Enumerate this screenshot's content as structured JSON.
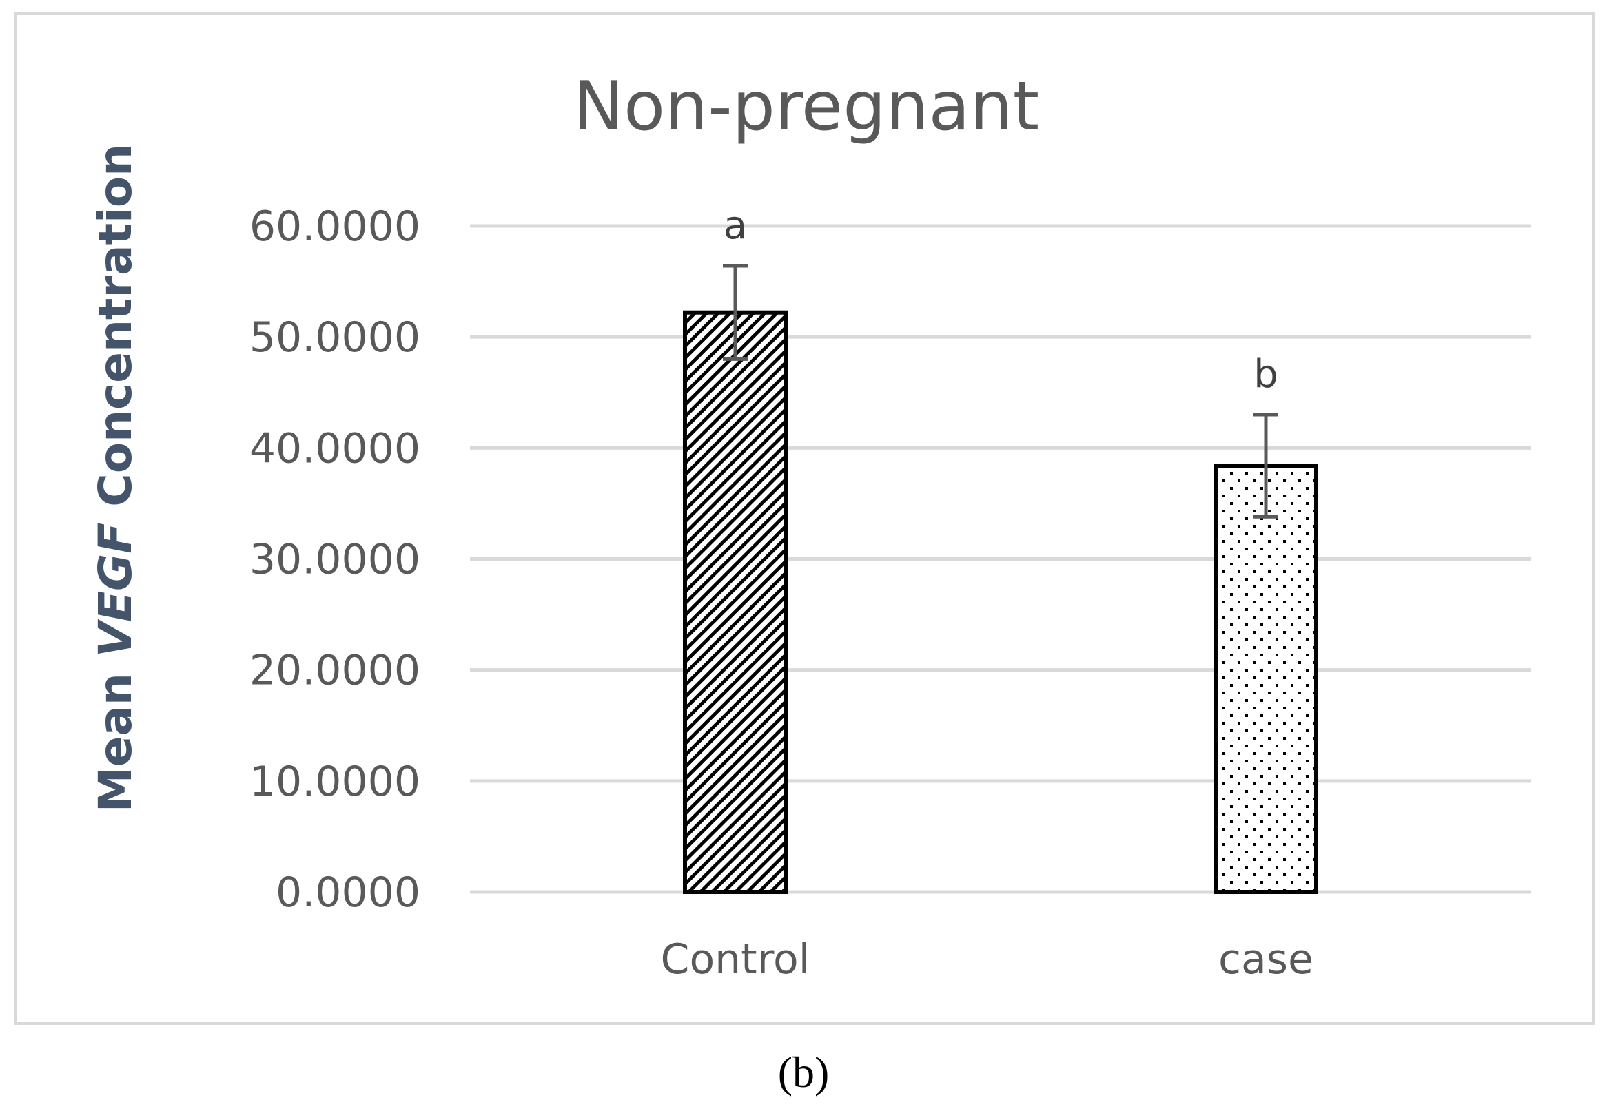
{
  "panel_label": "(b)",
  "chart_data": {
    "type": "bar",
    "title": "Non-pregnant",
    "ylabel": {
      "prefix": "Mean ",
      "italic": "VEGF",
      "suffix": " Concentration"
    },
    "xlabel": "",
    "categories": [
      "Control",
      "case"
    ],
    "values": [
      52.2,
      38.4
    ],
    "errors": [
      4.2,
      4.6
    ],
    "significance": [
      "a",
      "b"
    ],
    "patterns": [
      "diagonal-hatch",
      "dots"
    ],
    "ylim": [
      0,
      60
    ],
    "yticks": [
      0,
      10,
      20,
      30,
      40,
      50,
      60
    ],
    "ytick_labels": [
      "0.0000",
      "10.0000",
      "20.0000",
      "30.0000",
      "40.0000",
      "50.0000",
      "60.0000"
    ],
    "grid": true,
    "legend": "none",
    "colors": {
      "gridline": "#d9d9d9",
      "bar_outline": "#000000",
      "error_bar": "#595959",
      "frame": "#d9d9d9"
    }
  }
}
